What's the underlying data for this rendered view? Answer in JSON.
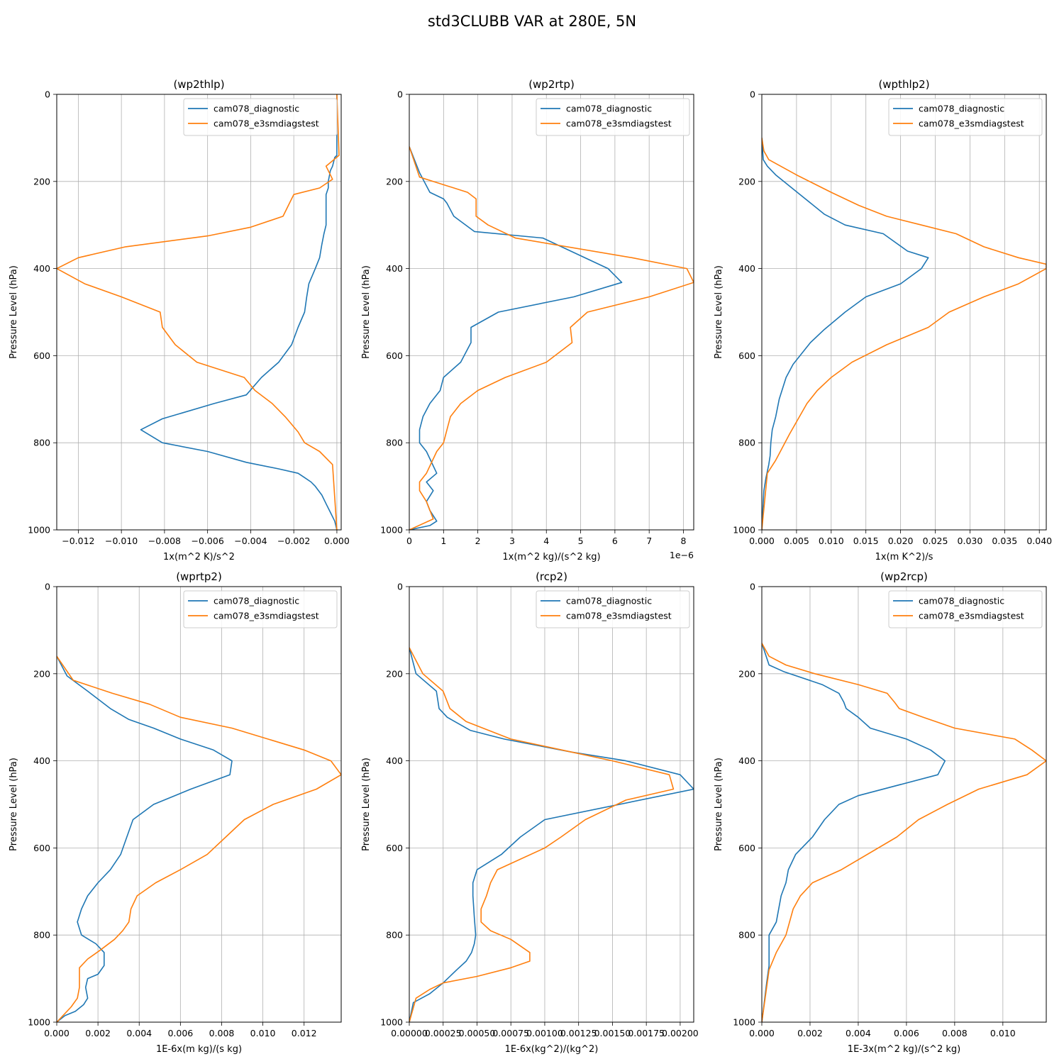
{
  "figure_title": "std3CLUBB VAR at 280E, 5N",
  "colors": {
    "series_1": "#1f77b4",
    "series_2": "#ff7f0e",
    "grid": "#b0b0b0"
  },
  "chart_data": [
    {
      "type": "line",
      "title": "(wp2thlp)",
      "xlabel": "1x(m^2 K)/s^2",
      "ylabel": "Pressure Level (hPa)",
      "xlim": [
        -0.013,
        0.0002
      ],
      "ylim": [
        1000,
        0
      ],
      "xticks": [
        -0.012,
        -0.01,
        -0.008,
        -0.006,
        -0.004,
        -0.002,
        0.0
      ],
      "xtick_labels": [
        "−0.012",
        "−0.010",
        "−0.008",
        "−0.006",
        "−0.004",
        "−0.002",
        "0.000"
      ],
      "yticks": [
        0,
        200,
        400,
        600,
        800,
        1000
      ],
      "ytick_labels": [
        "0",
        "200",
        "400",
        "600",
        "800",
        "1000"
      ],
      "offset_label": "",
      "grid": true,
      "legend": "upper-right",
      "series": [
        {
          "name": "cam078_diagnostic",
          "x": [
            0.0,
            0.0,
            -0.0001,
            -0.0002,
            -0.0003,
            -0.0004,
            -0.0004,
            -0.0005,
            -0.0005,
            -0.0005,
            -0.0005,
            -0.0006,
            -0.0007,
            -0.0008,
            -0.001,
            -0.0013,
            -0.0014,
            -0.0015,
            -0.0018,
            -0.0021,
            -0.0027,
            -0.0035,
            -0.0042,
            -0.0057,
            -0.0081,
            -0.0091,
            -0.0081,
            -0.006,
            -0.0042,
            -0.0027,
            -0.0018,
            -0.0015,
            -0.0012,
            -0.001,
            -0.0007,
            -0.0005,
            -0.0003,
            -0.0001,
            0.0
          ],
          "y": [
            0,
            140,
            145,
            165,
            175,
            200,
            215,
            230,
            265,
            280,
            300,
            320,
            345,
            375,
            400,
            435,
            465,
            500,
            535,
            575,
            615,
            650,
            690,
            710,
            745,
            770,
            800,
            820,
            845,
            860,
            870,
            880,
            890,
            900,
            920,
            940,
            960,
            980,
            1000
          ]
        },
        {
          "name": "cam078_e3smdiagstest",
          "x": [
            0.0,
            0.0001,
            -0.0005,
            -0.0002,
            -0.0008,
            -0.002,
            -0.0021,
            -0.0025,
            -0.004,
            -0.006,
            -0.0098,
            -0.012,
            -0.013,
            -0.0117,
            -0.01,
            -0.0082,
            -0.0081,
            -0.0075,
            -0.0065,
            -0.0043,
            -0.0038,
            -0.003,
            -0.0024,
            -0.0018,
            -0.0015,
            -0.0008,
            -0.0002,
            0.0
          ],
          "y": [
            0,
            140,
            165,
            195,
            215,
            230,
            240,
            280,
            305,
            325,
            350,
            375,
            400,
            435,
            465,
            500,
            535,
            575,
            615,
            650,
            680,
            710,
            740,
            775,
            800,
            820,
            850,
            1000
          ]
        }
      ]
    },
    {
      "type": "line",
      "title": "(wp2rtp)",
      "xlabel": "1x(m^2 kg)/(s^2 kg)",
      "ylabel": "Pressure Level (hPa)",
      "xlim": [
        0,
        8.3
      ],
      "ylim": [
        1000,
        0
      ],
      "xticks": [
        0,
        1,
        2,
        3,
        4,
        5,
        6,
        7,
        8
      ],
      "xtick_labels": [
        "0",
        "1",
        "2",
        "3",
        "4",
        "5",
        "6",
        "7",
        "8"
      ],
      "yticks": [
        0,
        200,
        400,
        600,
        800,
        1000
      ],
      "ytick_labels": [
        "0",
        "200",
        "400",
        "600",
        "800",
        "1000"
      ],
      "offset_label": "1e−6",
      "grid": true,
      "legend": "upper-right",
      "series": [
        {
          "name": "cam078_diagnostic",
          "x": [
            0.0,
            0.3,
            0.6,
            1.0,
            1.1,
            1.3,
            1.9,
            3.9,
            5.8,
            6.2,
            4.8,
            2.6,
            1.8,
            1.8,
            1.5,
            1.0,
            0.9,
            0.6,
            0.4,
            0.3,
            0.3,
            0.5,
            0.8,
            0.5,
            0.7,
            0.5,
            0.6,
            0.8,
            0.6,
            0.0
          ],
          "y": [
            120,
            180,
            225,
            240,
            250,
            280,
            315,
            330,
            400,
            432,
            465,
            500,
            535,
            570,
            615,
            650,
            680,
            710,
            740,
            770,
            800,
            820,
            870,
            890,
            910,
            935,
            955,
            980,
            990,
            1000
          ]
        },
        {
          "name": "cam078_e3smdiagstest",
          "x": [
            0.0,
            0.3,
            1.7,
            1.95,
            1.95,
            2.3,
            3.1,
            6.5,
            8.1,
            8.3,
            7.0,
            5.2,
            4.7,
            4.75,
            4.0,
            2.8,
            2.0,
            1.5,
            1.2,
            1.1,
            1.0,
            0.8,
            0.5,
            0.3,
            0.3,
            0.5,
            0.7,
            0.0
          ],
          "y": [
            120,
            190,
            225,
            240,
            280,
            300,
            330,
            375,
            400,
            432,
            465,
            500,
            535,
            570,
            615,
            650,
            680,
            710,
            740,
            770,
            800,
            820,
            870,
            890,
            910,
            935,
            975,
            1000
          ]
        }
      ]
    },
    {
      "type": "line",
      "title": "(wpthlp2)",
      "xlabel": "1x(m K^2)/s",
      "ylabel": "Pressure Level (hPa)",
      "xlim": [
        0,
        0.041
      ],
      "ylim": [
        1000,
        0
      ],
      "xticks": [
        0.0,
        0.005,
        0.01,
        0.015,
        0.02,
        0.025,
        0.03,
        0.035,
        0.04
      ],
      "xtick_labels": [
        "0.000",
        "0.005",
        "0.010",
        "0.015",
        "0.020",
        "0.025",
        "0.030",
        "0.035",
        "0.040"
      ],
      "yticks": [
        0,
        200,
        400,
        600,
        800,
        1000
      ],
      "ytick_labels": [
        "0",
        "200",
        "400",
        "600",
        "800",
        "1000"
      ],
      "offset_label": "",
      "grid": true,
      "legend": "upper-right",
      "series": [
        {
          "name": "cam078_diagnostic",
          "x": [
            0.0,
            0.0002,
            0.0008,
            0.002,
            0.0055,
            0.009,
            0.012,
            0.0175,
            0.021,
            0.024,
            0.023,
            0.02,
            0.015,
            0.012,
            0.009,
            0.007,
            0.0045,
            0.0035,
            0.0025,
            0.002,
            0.0015,
            0.0013,
            0.0012,
            0.001,
            0.0006,
            0.0003,
            0.0
          ],
          "y": [
            100,
            150,
            165,
            185,
            230,
            275,
            300,
            320,
            360,
            375,
            400,
            435,
            465,
            500,
            540,
            570,
            620,
            650,
            700,
            740,
            770,
            800,
            830,
            850,
            880,
            910,
            1000
          ]
        },
        {
          "name": "cam078_e3smdiagstest",
          "x": [
            0.0,
            0.0003,
            0.001,
            0.005,
            0.01,
            0.014,
            0.018,
            0.023,
            0.028,
            0.032,
            0.037,
            0.041,
            0.041,
            0.037,
            0.032,
            0.027,
            0.024,
            0.018,
            0.013,
            0.01,
            0.008,
            0.0065,
            0.004,
            0.002,
            0.0008,
            0.0
          ],
          "y": [
            100,
            130,
            150,
            185,
            225,
            255,
            280,
            300,
            320,
            350,
            375,
            390,
            400,
            435,
            465,
            500,
            535,
            575,
            615,
            650,
            680,
            710,
            780,
            840,
            870,
            1000
          ]
        }
      ]
    },
    {
      "type": "line",
      "title": "(wprtp2)",
      "xlabel": "1E-6x(m kg)/(s kg)",
      "ylabel": "Pressure Level (hPa)",
      "xlim": [
        0,
        0.0138
      ],
      "ylim": [
        1000,
        0
      ],
      "xticks": [
        0.0,
        0.002,
        0.004,
        0.006,
        0.008,
        0.01,
        0.012
      ],
      "xtick_labels": [
        "0.000",
        "0.002",
        "0.004",
        "0.006",
        "0.008",
        "0.010",
        "0.012"
      ],
      "yticks": [
        0,
        200,
        400,
        600,
        800,
        1000
      ],
      "ytick_labels": [
        "0",
        "200",
        "400",
        "600",
        "800",
        "1000"
      ],
      "offset_label": "",
      "grid": true,
      "legend": "upper-right",
      "series": [
        {
          "name": "cam078_diagnostic",
          "x": [
            0.0,
            0.0005,
            0.0015,
            0.0026,
            0.0035,
            0.0047,
            0.006,
            0.0076,
            0.0085,
            0.0084,
            0.0065,
            0.0047,
            0.0037,
            0.0034,
            0.0031,
            0.0026,
            0.002,
            0.0015,
            0.0012,
            0.001,
            0.0012,
            0.0019,
            0.0023,
            0.0023,
            0.002,
            0.0015,
            0.0014,
            0.0015,
            0.0013,
            0.0009,
            0.0004,
            0.0
          ],
          "y": [
            160,
            205,
            240,
            280,
            305,
            325,
            350,
            375,
            400,
            432,
            465,
            500,
            535,
            575,
            615,
            650,
            680,
            710,
            740,
            770,
            800,
            820,
            840,
            870,
            890,
            900,
            920,
            945,
            960,
            975,
            985,
            1000
          ]
        },
        {
          "name": "cam078_e3smdiagstest",
          "x": [
            0.0,
            0.0008,
            0.0027,
            0.0045,
            0.006,
            0.0085,
            0.012,
            0.0133,
            0.0138,
            0.0126,
            0.0105,
            0.0091,
            0.0082,
            0.0073,
            0.006,
            0.0048,
            0.0039,
            0.0036,
            0.0035,
            0.0032,
            0.0028,
            0.0021,
            0.0015,
            0.0011,
            0.0011,
            0.0011,
            0.001,
            0.0007,
            0.0002,
            0.0
          ],
          "y": [
            160,
            215,
            245,
            270,
            300,
            325,
            375,
            400,
            432,
            465,
            500,
            535,
            575,
            615,
            650,
            680,
            710,
            740,
            770,
            790,
            810,
            835,
            855,
            875,
            890,
            920,
            945,
            965,
            990,
            1000
          ]
        }
      ]
    },
    {
      "type": "line",
      "title": "(rcp2)",
      "xlabel": "1E-6x(kg^2)/(kg^2)",
      "ylabel": "Pressure Level (hPa)",
      "xlim": [
        0,
        0.0021
      ],
      "ylim": [
        1000,
        0
      ],
      "xticks": [
        0.0,
        0.00025,
        0.0005,
        0.00075,
        0.001,
        0.00125,
        0.0015,
        0.00175,
        0.002
      ],
      "xtick_labels": [
        "0.00000",
        "0.00025",
        "0.00050",
        "0.00075",
        "0.00100",
        "0.00125",
        "0.00150",
        "0.00175",
        "0.00200"
      ],
      "yticks": [
        0,
        200,
        400,
        600,
        800,
        1000
      ],
      "ytick_labels": [
        "0",
        "200",
        "400",
        "600",
        "800",
        "1000"
      ],
      "offset_label": "",
      "grid": true,
      "legend": "upper-right",
      "series": [
        {
          "name": "cam078_diagnostic",
          "x": [
            0.0,
            5e-05,
            0.0002,
            0.00022,
            0.00028,
            0.00045,
            0.0007,
            0.0012,
            0.0016,
            0.002,
            0.0021,
            0.001,
            0.00082,
            0.00068,
            0.0005,
            0.00047,
            0.00047,
            0.00048,
            0.00049,
            0.00048,
            0.00046,
            0.00042,
            0.00035,
            0.00025,
            0.00015,
            3e-05,
            0.0
          ],
          "y": [
            140,
            200,
            240,
            280,
            300,
            330,
            350,
            380,
            400,
            432,
            465,
            535,
            575,
            615,
            650,
            680,
            710,
            760,
            800,
            820,
            840,
            860,
            880,
            910,
            935,
            955,
            1000
          ]
        },
        {
          "name": "cam078_e3smdiagstest",
          "x": [
            0.0,
            0.0001,
            0.00025,
            0.0003,
            0.00042,
            0.00075,
            0.0012,
            0.0015,
            0.00192,
            0.00195,
            0.0016,
            0.0013,
            0.00112,
            0.001,
            0.00065,
            0.0006,
            0.00057,
            0.00053,
            0.00053,
            0.0006,
            0.00075,
            0.00089,
            0.00089,
            0.00075,
            0.0005,
            0.00025,
            0.00015,
            5e-05,
            0.0
          ],
          "y": [
            140,
            200,
            240,
            280,
            310,
            350,
            380,
            400,
            432,
            465,
            490,
            535,
            575,
            600,
            650,
            680,
            710,
            740,
            770,
            790,
            810,
            840,
            860,
            875,
            895,
            910,
            925,
            945,
            1000
          ]
        }
      ]
    },
    {
      "type": "line",
      "title": "(wp2rcp)",
      "xlabel": "1E-3x(m^2 kg)/(s^2 kg)",
      "ylabel": "Pressure Level (hPa)",
      "xlim": [
        0,
        0.0118
      ],
      "ylim": [
        1000,
        0
      ],
      "xticks": [
        0.0,
        0.002,
        0.004,
        0.006,
        0.008,
        0.01
      ],
      "xtick_labels": [
        "0.000",
        "0.002",
        "0.004",
        "0.006",
        "0.008",
        "0.010"
      ],
      "yticks": [
        0,
        200,
        400,
        600,
        800,
        1000
      ],
      "ytick_labels": [
        "0",
        "200",
        "400",
        "600",
        "800",
        "1000"
      ],
      "offset_label": "",
      "grid": true,
      "legend": "upper-right",
      "series": [
        {
          "name": "cam078_diagnostic",
          "x": [
            0.0,
            0.0003,
            0.0009,
            0.0025,
            0.0032,
            0.0034,
            0.0035,
            0.004,
            0.0045,
            0.006,
            0.007,
            0.0076,
            0.0073,
            0.004,
            0.0032,
            0.0026,
            0.0021,
            0.0014,
            0.0011,
            0.001,
            0.0008,
            0.0006,
            0.0003,
            0.0003,
            0.0003,
            0.0002,
            0.0
          ],
          "y": [
            130,
            180,
            195,
            225,
            245,
            265,
            280,
            300,
            325,
            350,
            375,
            400,
            432,
            480,
            500,
            535,
            575,
            615,
            650,
            680,
            710,
            770,
            800,
            850,
            870,
            910,
            1000
          ]
        },
        {
          "name": "cam078_e3smdiagstest",
          "x": [
            0.0,
            0.0003,
            0.001,
            0.0022,
            0.004,
            0.0052,
            0.0055,
            0.0057,
            0.0067,
            0.008,
            0.0105,
            0.0112,
            0.0118,
            0.011,
            0.009,
            0.0077,
            0.0065,
            0.0056,
            0.0033,
            0.0021,
            0.0016,
            0.0013,
            0.001,
            0.0006,
            0.0003,
            0.0
          ],
          "y": [
            130,
            160,
            180,
            200,
            225,
            245,
            265,
            280,
            300,
            325,
            350,
            375,
            400,
            432,
            465,
            500,
            535,
            575,
            650,
            680,
            710,
            740,
            800,
            840,
            880,
            1000
          ]
        }
      ]
    }
  ]
}
